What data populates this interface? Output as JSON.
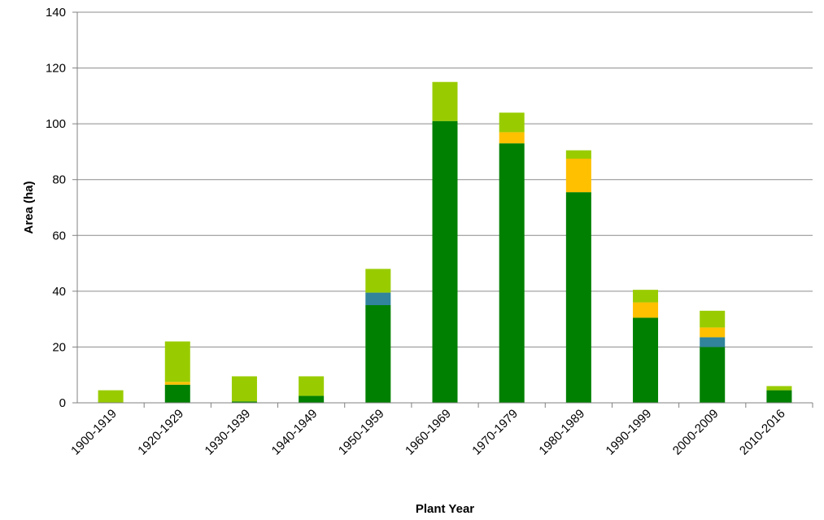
{
  "chart_data": {
    "type": "bar",
    "stacked": true,
    "title": "",
    "xlabel": "Plant Year",
    "ylabel": "Area (ha)",
    "ylim": [
      0,
      140
    ],
    "yticks": [
      0,
      20,
      40,
      60,
      80,
      100,
      120,
      140
    ],
    "grid": true,
    "legend": "none",
    "categories": [
      "1900-1919",
      "1920-1929",
      "1930-1939",
      "1940-1949",
      "1950-1959",
      "1960-1969",
      "1970-1979",
      "1980-1989",
      "1990-1999",
      "2000-2009",
      "2010-2016"
    ],
    "series": [
      {
        "color": "#008000",
        "values": [
          0,
          6.5,
          0.5,
          2.5,
          35,
          101,
          93,
          75.5,
          30.5,
          20,
          4.5
        ]
      },
      {
        "color": "#31849B",
        "values": [
          0,
          0,
          0,
          0,
          4.5,
          0,
          0,
          0,
          0,
          3.5,
          0
        ]
      },
      {
        "color": "#FFC000",
        "values": [
          0,
          1,
          0,
          0,
          0,
          0,
          4,
          12,
          5.5,
          3.5,
          0
        ]
      },
      {
        "color": "#99CC00",
        "values": [
          4.5,
          14.5,
          9,
          7,
          8.5,
          14,
          7,
          3,
          4.5,
          6,
          1.5
        ]
      }
    ]
  }
}
